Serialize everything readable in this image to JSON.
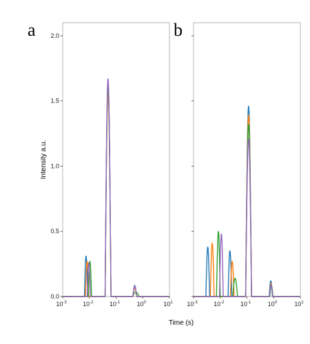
{
  "chart_data": [
    {
      "type": "line",
      "panel_label": "a",
      "xlabel": "Time (s)",
      "ylabel": "Intensity a.u.",
      "xscale": "log",
      "xlim": [
        0.001,
        10
      ],
      "ylim": [
        0,
        2.1
      ],
      "xticks": [
        {
          "base": "10",
          "exp": "-3"
        },
        {
          "base": "10",
          "exp": "-2"
        },
        {
          "base": "10",
          "exp": "-1"
        },
        {
          "base": "10",
          "exp": "0"
        },
        {
          "base": "10",
          "exp": "1"
        }
      ],
      "yticks": [
        "0.0",
        "0.5",
        "1.0",
        "1.5",
        "2.0"
      ],
      "series_colors": [
        "#1f77b4",
        "#ff7f0e",
        "#2ca02c",
        "#9467bd"
      ],
      "series": [
        {
          "values": [
            {
              "center": 0.0075,
              "height": 0.31,
              "halfwidth_dec": 0.06
            },
            {
              "center": 0.05,
              "height": 1.65,
              "halfwidth_dec": 0.11
            },
            {
              "center": 0.5,
              "height": 0.085,
              "halfwidth_dec": 0.07
            }
          ]
        },
        {
          "values": [
            {
              "center": 0.0082,
              "height": 0.27,
              "halfwidth_dec": 0.06
            },
            {
              "center": 0.05,
              "height": 1.56,
              "halfwidth_dec": 0.11
            },
            {
              "center": 0.5,
              "height": 0.065,
              "halfwidth_dec": 0.07
            }
          ]
        },
        {
          "values": [
            {
              "center": 0.0105,
              "height": 0.27,
              "halfwidth_dec": 0.06
            },
            {
              "center": 0.05,
              "height": 1.62,
              "halfwidth_dec": 0.11
            },
            {
              "center": 0.55,
              "height": 0.035,
              "halfwidth_dec": 0.12
            }
          ]
        },
        {
          "values": [
            {
              "center": 0.0095,
              "height": 0.26,
              "halfwidth_dec": 0.06
            },
            {
              "center": 0.05,
              "height": 1.67,
              "halfwidth_dec": 0.11
            },
            {
              "center": 0.5,
              "height": 0.08,
              "halfwidth_dec": 0.07
            }
          ]
        }
      ]
    },
    {
      "type": "line",
      "panel_label": "b",
      "xlabel": "Time (s)",
      "ylabel": "Intensity a.u.",
      "xscale": "log",
      "xlim": [
        0.001,
        10
      ],
      "ylim": [
        0,
        2.1
      ],
      "xticks": [
        {
          "base": "10",
          "exp": "-3"
        },
        {
          "base": "10",
          "exp": "-2"
        },
        {
          "base": "10",
          "exp": "-1"
        },
        {
          "base": "10",
          "exp": "0"
        },
        {
          "base": "10",
          "exp": "1"
        }
      ],
      "yticks": [
        "0.0",
        "0.5",
        "1.0",
        "1.5",
        "2.0"
      ],
      "series_colors": [
        "#1f77b4",
        "#ff7f0e",
        "#2ca02c",
        "#9467bd"
      ],
      "series": [
        {
          "values": [
            {
              "center": 0.0034,
              "height": 0.38,
              "halfwidth_dec": 0.07
            },
            {
              "center": 0.023,
              "height": 0.35,
              "halfwidth_dec": 0.07
            },
            {
              "center": 0.115,
              "height": 1.46,
              "halfwidth_dec": 0.11
            },
            {
              "center": 0.78,
              "height": 0.12,
              "halfwidth_dec": 0.06
            }
          ]
        },
        {
          "values": [
            {
              "center": 0.005,
              "height": 0.41,
              "halfwidth_dec": 0.07
            },
            {
              "center": 0.028,
              "height": 0.27,
              "halfwidth_dec": 0.07
            },
            {
              "center": 0.115,
              "height": 1.39,
              "halfwidth_dec": 0.11
            },
            {
              "center": 0.8,
              "height": 0.1,
              "halfwidth_dec": 0.06
            }
          ]
        },
        {
          "values": [
            {
              "center": 0.0085,
              "height": 0.5,
              "halfwidth_dec": 0.07
            },
            {
              "center": 0.036,
              "height": 0.14,
              "halfwidth_dec": 0.09
            },
            {
              "center": 0.115,
              "height": 1.32,
              "halfwidth_dec": 0.11
            },
            {
              "center": 0.82,
              "height": 0.085,
              "halfwidth_dec": 0.06
            }
          ]
        },
        {
          "values": [
            {
              "center": 0.011,
              "height": 0.48,
              "halfwidth_dec": 0.07
            },
            {
              "center": 0.115,
              "height": 1.21,
              "halfwidth_dec": 0.11
            },
            {
              "center": 0.8,
              "height": 0.09,
              "halfwidth_dec": 0.06
            }
          ]
        }
      ]
    }
  ]
}
